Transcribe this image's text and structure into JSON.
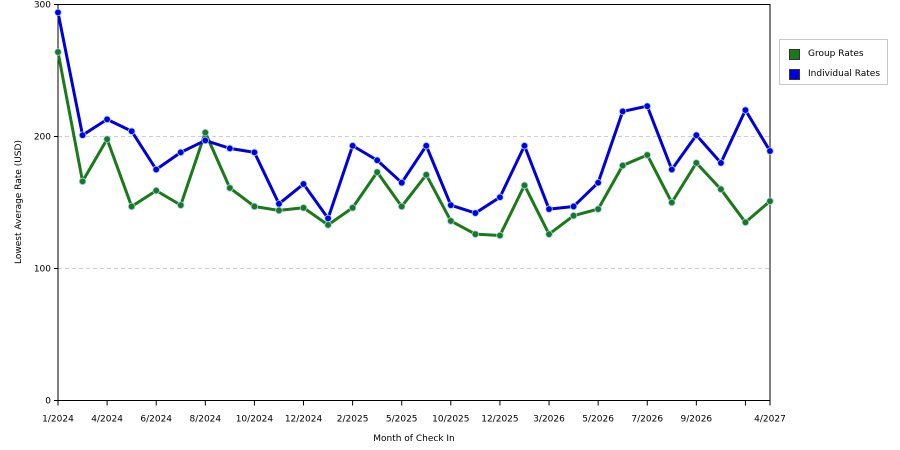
{
  "chart_data": {
    "type": "line",
    "xlabel": "Month of Check In",
    "ylabel": "Lowest Average Rate (USD)",
    "ylim": [
      0,
      300
    ],
    "y_ticks": [
      0,
      100,
      200,
      300
    ],
    "grid": "horizontal dashed",
    "legend_position": "top-right",
    "x_tick_labels": [
      {
        "index": 0,
        "label": "1/2024"
      },
      {
        "index": 2,
        "label": "4/2024"
      },
      {
        "index": 4,
        "label": "6/2024"
      },
      {
        "index": 6,
        "label": "8/2024"
      },
      {
        "index": 8,
        "label": "10/2024"
      },
      {
        "index": 10,
        "label": "12/2024"
      },
      {
        "index": 12,
        "label": "2/2025"
      },
      {
        "index": 14,
        "label": "5/2025"
      },
      {
        "index": 16,
        "label": "10/2025"
      },
      {
        "index": 18,
        "label": "12/2025"
      },
      {
        "index": 20,
        "label": "3/2026"
      },
      {
        "index": 22,
        "label": "5/2026"
      },
      {
        "index": 24,
        "label": "7/2026"
      },
      {
        "index": 26,
        "label": "9/2026"
      },
      {
        "index": 28,
        "label": ""
      },
      {
        "index": 29,
        "label": "4/2027"
      }
    ],
    "series": [
      {
        "name": "Group Rates",
        "color": "#1a7a1a",
        "values": [
          264,
          166,
          198,
          147,
          159,
          148,
          203,
          161,
          147,
          144,
          146,
          133,
          146,
          173,
          147,
          171,
          136,
          126,
          125,
          163,
          126,
          140,
          145,
          178,
          186,
          150,
          180,
          160,
          135,
          151
        ]
      },
      {
        "name": "Individual Rates",
        "color": "#0000dd",
        "values": [
          294,
          201,
          213,
          204,
          175,
          188,
          197,
          191,
          188,
          149,
          164,
          138,
          193,
          182,
          165,
          193,
          148,
          142,
          154,
          193,
          145,
          147,
          165,
          219,
          223,
          175,
          201,
          180,
          220,
          189
        ]
      }
    ]
  }
}
